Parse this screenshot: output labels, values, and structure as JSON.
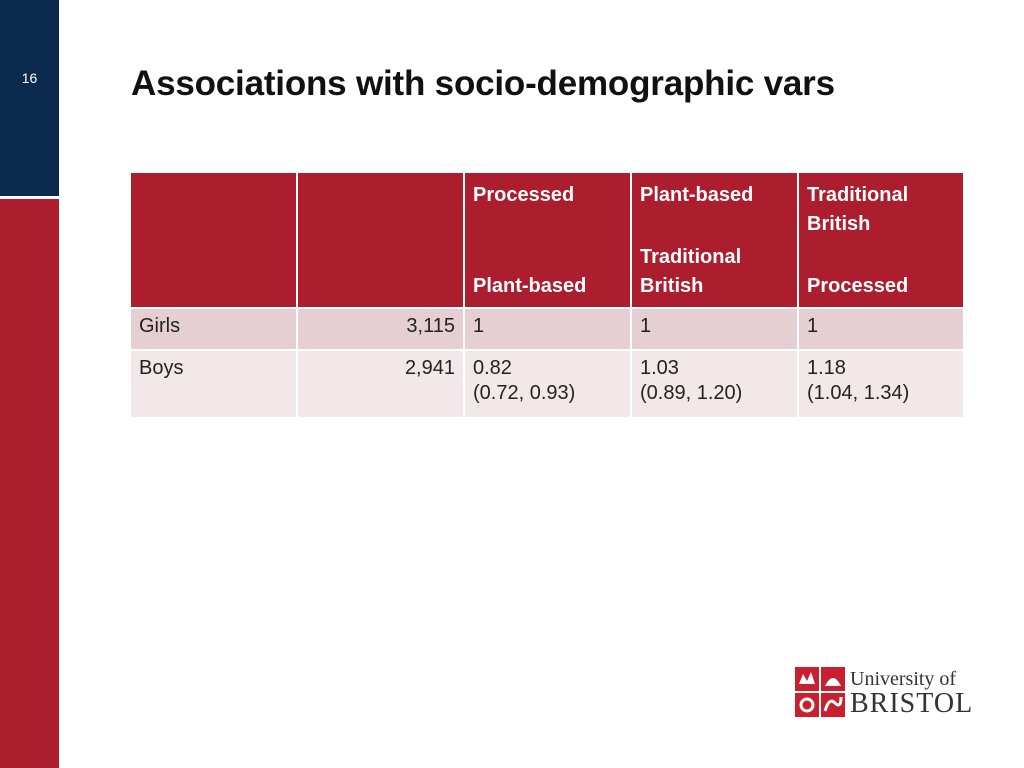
{
  "slide": {
    "number": "16",
    "title": "Associations with socio-demographic vars"
  },
  "table": {
    "headers": [
      {
        "top": "",
        "bottom": ""
      },
      {
        "top": "",
        "bottom": ""
      },
      {
        "top": "Processed",
        "bottom": "Plant-based"
      },
      {
        "top": "Plant-based",
        "bottom": "Traditional British"
      },
      {
        "top": "Traditional British",
        "bottom": "Processed"
      }
    ],
    "rows": [
      {
        "label": "Girls",
        "n": "3,115",
        "c1": "1",
        "c1_ci": "",
        "c2": "1",
        "c2_ci": "",
        "c3": "1",
        "c3_ci": ""
      },
      {
        "label": "Boys",
        "n": "2,941",
        "c1": "0.82",
        "c1_ci": "(0.72, 0.93)",
        "c2": "1.03",
        "c2_ci": "(0.89, 1.20)",
        "c3": "1.18",
        "c3_ci": "(1.04, 1.34)"
      }
    ]
  },
  "logo": {
    "line1": "University of",
    "line2": "BRISTOL"
  },
  "colors": {
    "brand_red": "#ac1d2d",
    "navy": "#0c2a4d",
    "row_dark": "#e6cfd2",
    "row_light": "#f3e8e9"
  }
}
